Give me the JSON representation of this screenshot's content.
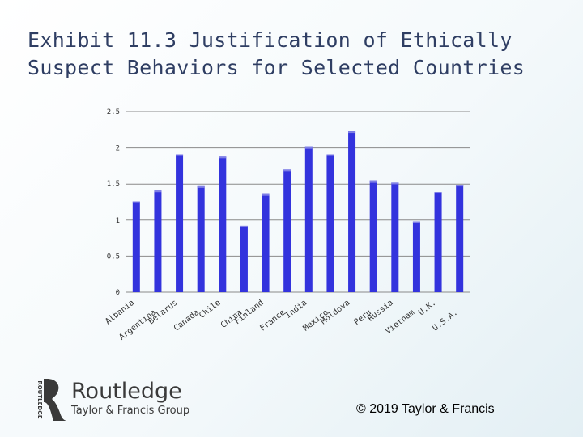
{
  "slide": {
    "title_line1": "Exhibit 11.3 Justification of Ethically",
    "title_line2": "Suspect Behaviors for Selected Countries",
    "copyright": "© 2019 Taylor & Francis"
  },
  "logo": {
    "name": "Routledge",
    "subtitle": "Taylor & Francis Group",
    "vertical_text": "ROUTLEDGE"
  },
  "colors": {
    "bar": "#3333dd",
    "bar_highlight": "#7f7fe6",
    "title": "#2f3e63"
  },
  "chart_data": {
    "type": "bar",
    "categories": [
      "Albania",
      "Argentina",
      "Belarus",
      "Canada",
      "Chile",
      "China",
      "Finland",
      "France",
      "India",
      "Mexico",
      "Moldova",
      "Peru",
      "Russia",
      "Vietnam",
      "U.K.",
      "U.S.A."
    ],
    "values": [
      1.26,
      1.41,
      1.91,
      1.47,
      1.88,
      0.92,
      1.36,
      1.7,
      2.01,
      1.91,
      2.23,
      1.54,
      1.52,
      0.98,
      1.39,
      1.49
    ],
    "yticks": [
      "0",
      "0.5",
      "1",
      "1.5",
      "2",
      "2.5"
    ],
    "ylim": [
      0,
      2.5
    ],
    "grid": true,
    "legend": "none"
  }
}
